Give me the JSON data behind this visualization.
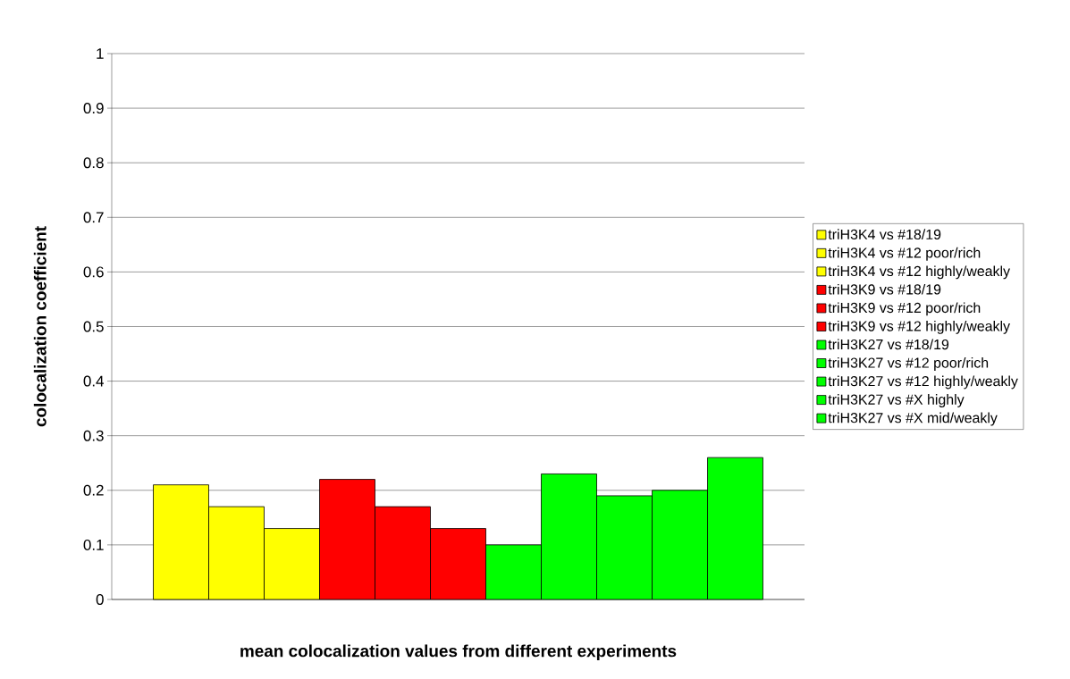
{
  "chart_data": {
    "type": "bar",
    "xlabel": "mean colocalization values from different experiments",
    "ylabel": "colocalization coefficient",
    "categories": [
      null
    ],
    "series": [
      {
        "name": "triH3K4 vs #18/19",
        "color": "#ffff00",
        "values": [
          0.21
        ]
      },
      {
        "name": "triH3K4 vs #12 poor/rich",
        "color": "#ffff00",
        "values": [
          0.17
        ]
      },
      {
        "name": "triH3K4 vs #12 highly/weakly",
        "color": "#ffff00",
        "values": [
          0.13
        ]
      },
      {
        "name": "triH3K9 vs #18/19",
        "color": "#ff0000",
        "values": [
          0.22
        ]
      },
      {
        "name": "triH3K9 vs #12 poor/rich",
        "color": "#ff0000",
        "values": [
          0.17
        ]
      },
      {
        "name": "triH3K9 vs #12 highly/weakly",
        "color": "#ff0000",
        "values": [
          0.13
        ]
      },
      {
        "name": "triH3K27 vs #18/19",
        "color": "#00ff00",
        "values": [
          0.1
        ]
      },
      {
        "name": "triH3K27 vs #12 poor/rich",
        "color": "#00ff00",
        "values": [
          0.23
        ]
      },
      {
        "name": "triH3K27 vs #12 highly/weakly",
        "color": "#00ff00",
        "values": [
          0.19
        ]
      },
      {
        "name": "triH3K27 vs #X highly",
        "color": "#00ff00",
        "values": [
          0.2
        ]
      },
      {
        "name": "triH3K27 vs #X mid/weakly",
        "color": "#00ff00",
        "values": [
          0.26
        ]
      }
    ],
    "ylim": [
      0,
      1
    ],
    "yticks": [
      0,
      0.1,
      0.2,
      0.3,
      0.4,
      0.5,
      0.6,
      0.7,
      0.8,
      0.9,
      1
    ],
    "grid": "y",
    "legend": "right"
  }
}
